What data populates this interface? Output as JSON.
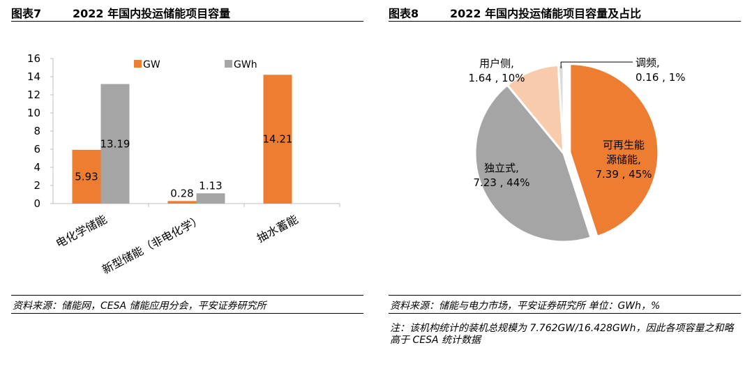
{
  "figure7": {
    "number": "图表7",
    "title": "2022 年国内投运储能项目容量",
    "source": "资料来源：储能网，CESA 储能应用分会，平安证券研究所"
  },
  "figure8": {
    "number": "图表8",
    "title": "2022 年国内投运储能项目容量及占比",
    "source": "资料来源：储能与电力市场，平安证券研究所  单位：GWh，%",
    "note": "注：该机构统计的装机总规模为 7.762GW/16.428GWh，因此各项容量之和略高于 CESA 统计数据"
  },
  "chart_data": [
    {
      "type": "bar",
      "categories": [
        "电化学储能",
        "新型储能（非电化学）",
        "抽水蓄能"
      ],
      "series": [
        {
          "name": "GW",
          "values": [
            5.93,
            0.28,
            14.21
          ],
          "color": "#ED7D31"
        },
        {
          "name": "GWh",
          "values": [
            13.19,
            1.13,
            null
          ],
          "color": "#A5A5A5"
        }
      ],
      "data_labels": [
        [
          "5.93",
          "0.28",
          "14.21"
        ],
        [
          "13.19",
          "1.13",
          ""
        ]
      ],
      "yticks": [
        "0",
        "2",
        "4",
        "6",
        "8",
        "10",
        "12",
        "14",
        "16"
      ],
      "ylim": [
        0,
        16
      ],
      "legend": "top",
      "grid": false
    },
    {
      "type": "pie",
      "slices": [
        {
          "label": [
            "可再生能",
            "源储能,"
          ],
          "value_label": "7.39 , 45%",
          "value": 7.39,
          "percent": 45,
          "color": "#ED7D31"
        },
        {
          "label": [
            "独立式,"
          ],
          "value_label": "7.23 , 44%",
          "value": 7.23,
          "percent": 44,
          "color": "#A5A5A5"
        },
        {
          "label": [
            "用户侧,"
          ],
          "value_label": "1.64 , 10%",
          "value": 1.64,
          "percent": 10,
          "color": "#F8CBAD"
        },
        {
          "label": [
            "调频,"
          ],
          "value_label": "0.16 , 1%",
          "value": 0.16,
          "percent": 1,
          "color": "#DBDBDB"
        }
      ],
      "exploded": "可再生能源储能"
    }
  ]
}
